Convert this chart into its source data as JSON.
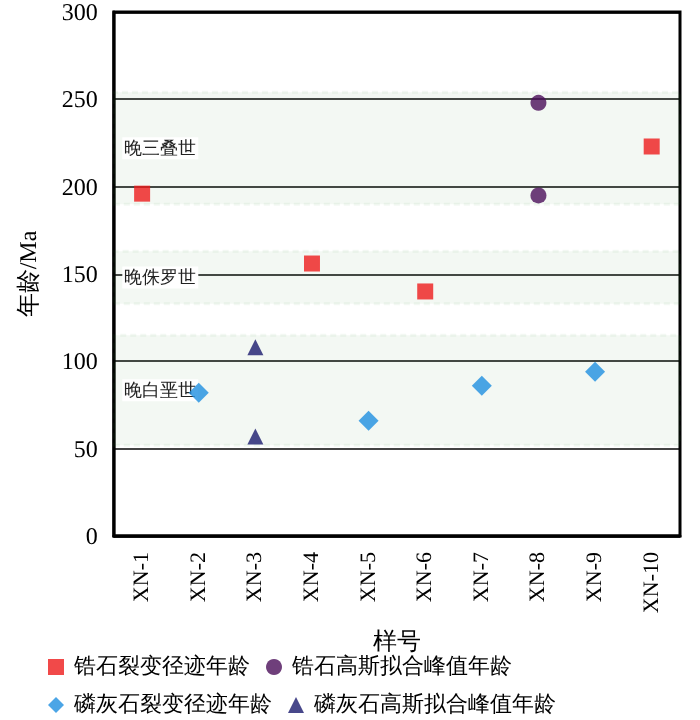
{
  "chart_data": {
    "type": "scatter",
    "xlabel": "样号",
    "ylabel": "年龄/Ma",
    "categories": [
      "XN-1",
      "XN-2",
      "XN-3",
      "XN-4",
      "XN-5",
      "XN-6",
      "XN-7",
      "XN-8",
      "XN-9",
      "XN-10"
    ],
    "series": [
      {
        "name": "锆石裂变径迹年龄",
        "color": "#ee1c1c",
        "marker": "square",
        "x": [
          "XN-1",
          "XN-4",
          "XN-6",
          "XN-10"
        ],
        "values": [
          196,
          156,
          140,
          223
        ]
      },
      {
        "name": "锆石高斯拟合峰值年龄",
        "color": "#4b0f5a",
        "marker": "circle",
        "x": [
          "XN-8",
          "XN-8"
        ],
        "values": [
          248,
          195
        ]
      },
      {
        "name": "磷灰石裂变径迹年龄",
        "color": "#1e8fe0",
        "marker": "diamond",
        "x": [
          "XN-2",
          "XN-5",
          "XN-7",
          "XN-9"
        ],
        "values": [
          82,
          66,
          86,
          94
        ]
      },
      {
        "name": "磷灰石高斯拟合峰值年龄",
        "color": "#1a1a6e",
        "marker": "triangle",
        "x": [
          "XN-3",
          "XN-3"
        ],
        "values": [
          108,
          57
        ]
      }
    ],
    "bands": [
      {
        "axis": "y",
        "from": 190,
        "to": 254,
        "label": "晚三叠世",
        "color": "#2e8b2e"
      },
      {
        "axis": "y",
        "from": 133,
        "to": 163,
        "label": "晚侏罗世",
        "color": "#2e8b2e"
      },
      {
        "axis": "y",
        "from": 52,
        "to": 115,
        "label": "晚白垩世",
        "color": "#2e8b2e"
      }
    ],
    "ylim": [
      0,
      300
    ],
    "yticks": [
      0,
      50,
      100,
      150,
      200,
      250,
      300
    ],
    "grid": "y",
    "legend": "bottom"
  }
}
